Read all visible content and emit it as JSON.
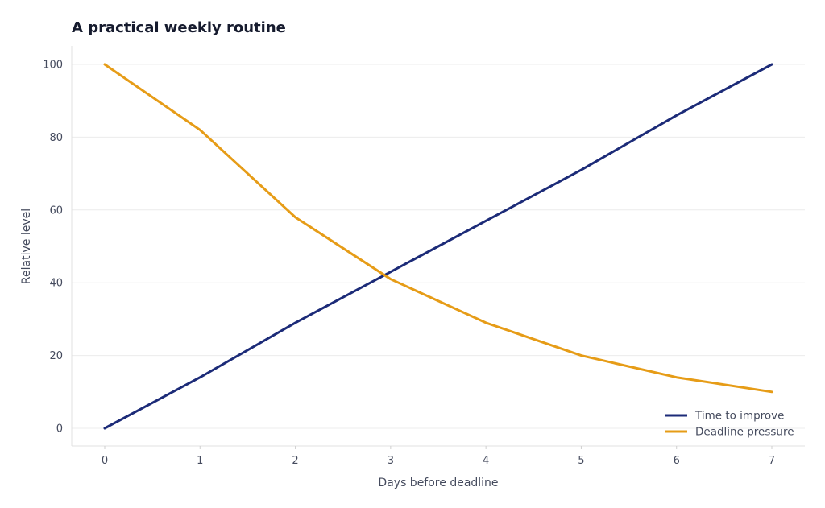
{
  "chart_data": {
    "type": "line",
    "title": "A practical weekly routine",
    "xlabel": "Days before deadline",
    "ylabel": "Relative level",
    "x": [
      0,
      1,
      2,
      3,
      4,
      5,
      6,
      7
    ],
    "xlim": [
      0,
      7
    ],
    "ylim": [
      0,
      100
    ],
    "xticks": [
      "0",
      "1",
      "2",
      "3",
      "4",
      "5",
      "6",
      "7"
    ],
    "yticks": [
      "0",
      "20",
      "40",
      "60",
      "80",
      "100"
    ],
    "grid": "horizontal",
    "legend_position": "bottom-right",
    "series": [
      {
        "name": "Time to improve",
        "color": "#1c2b78",
        "values": [
          0,
          14,
          29,
          43,
          57,
          71,
          86,
          100
        ]
      },
      {
        "name": "Deadline pressure",
        "color": "#e69c17",
        "values": [
          100,
          82,
          58,
          41,
          29,
          20,
          14,
          10
        ]
      }
    ]
  }
}
